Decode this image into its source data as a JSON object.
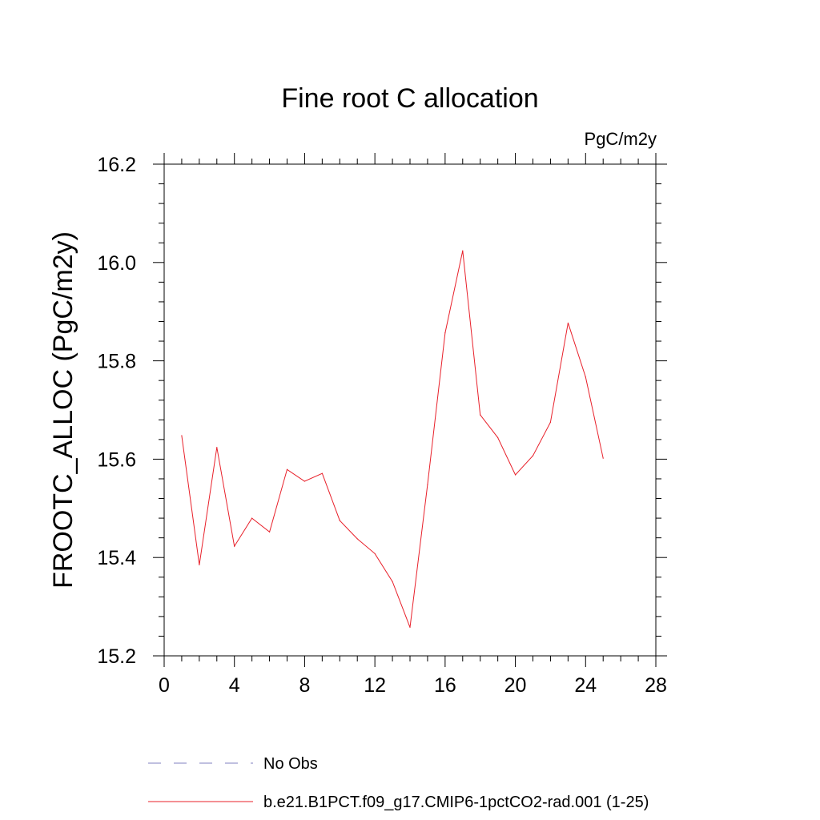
{
  "chart_data": {
    "type": "line",
    "title": "Fine root C allocation",
    "units_label": "PgC/m2y",
    "ylabel": "FROOTC_ALLOC  (PgC/m2y)",
    "xlabel": "",
    "xlim": [
      0,
      28
    ],
    "ylim": [
      15.2,
      16.2
    ],
    "x_ticks": [
      0,
      4,
      8,
      12,
      16,
      20,
      24,
      28
    ],
    "x_tick_labels": [
      "0",
      "4",
      "8",
      "12",
      "16",
      "20",
      "24",
      "28"
    ],
    "y_ticks": [
      15.2,
      15.4,
      15.6,
      15.8,
      16.0,
      16.2
    ],
    "y_tick_labels": [
      "15.2",
      "15.4",
      "15.6",
      "15.8",
      "16.0",
      "16.2"
    ],
    "grid": false,
    "legend_position": "bottom",
    "series": [
      {
        "name": "b.e21.B1PCT.f09_g17.CMIP6-1pctCO2-rad.001 (1-25)",
        "color": "#e8202a",
        "style": "solid",
        "x": [
          1,
          2,
          3,
          4,
          5,
          6,
          7,
          8,
          9,
          10,
          11,
          12,
          13,
          14,
          15,
          16,
          17,
          18,
          19,
          20,
          21,
          22,
          23,
          24,
          25
        ],
        "y": [
          15.648,
          15.385,
          15.624,
          15.423,
          15.48,
          15.452,
          15.579,
          15.555,
          15.571,
          15.475,
          15.438,
          15.408,
          15.351,
          15.258,
          15.548,
          15.857,
          16.024,
          15.69,
          15.644,
          15.568,
          15.607,
          15.675,
          15.877,
          15.767,
          15.602
        ]
      }
    ],
    "legend": [
      {
        "label": "No Obs",
        "color": "#8080c0",
        "style": "dashed"
      },
      {
        "label": "b.e21.B1PCT.f09_g17.CMIP6-1pctCO2-rad.001 (1-25)",
        "color": "#e8202a",
        "style": "solid"
      }
    ]
  }
}
